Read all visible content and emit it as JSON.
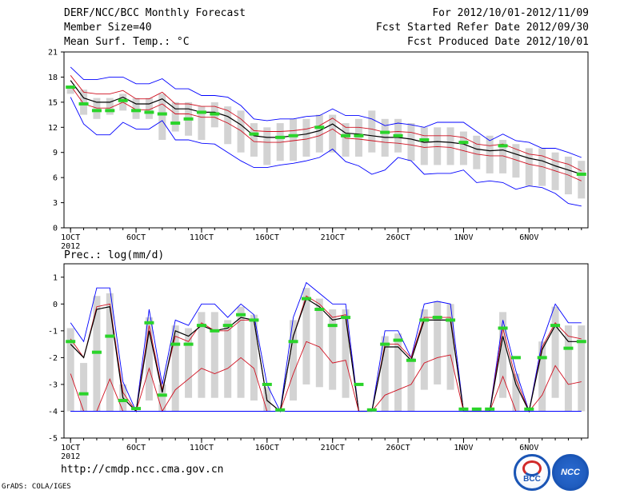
{
  "header": {
    "title": "DERF/NCC/BCC Monthly Forecast",
    "member_size": "Member Size=40",
    "variable": "Mean Surf. Temp.: °C",
    "period": "For 2012/10/01-2012/11/09",
    "started": "Fcst Started Refer Date 2012/09/30",
    "produced": "Fcst Produced Date 2012/10/01"
  },
  "precip_label": "Prec.: log(mm/d)",
  "footer": {
    "url": "http://cmdp.ncc.cma.gov.cn",
    "grads": "GrADS: COLA/IGES",
    "logo_left": "BCC",
    "logo_right": "NCC"
  },
  "colors": {
    "box": "#d3d3d3",
    "green": "#2ad42a",
    "blue": "#0000ff",
    "red": "#d01020",
    "black": "#000000"
  },
  "chart_data": [
    {
      "type": "line",
      "name": "temperature",
      "title": "Mean Surf. Temp.: °C",
      "ylabel": "°C",
      "ylim": [
        0,
        21
      ],
      "yticks": [
        0,
        3,
        6,
        9,
        12,
        15,
        18,
        21
      ],
      "xlim": [
        0.5,
        40.5
      ],
      "xticks": [
        {
          "day": 1,
          "label": "1OCT",
          "sub": "2012"
        },
        {
          "day": 6,
          "label": "6OCT"
        },
        {
          "day": 11,
          "label": "11OCT"
        },
        {
          "day": 16,
          "label": "16OCT"
        },
        {
          "day": 21,
          "label": "21OCT"
        },
        {
          "day": 26,
          "label": "26OCT"
        },
        {
          "day": 31,
          "label": "1NOV"
        },
        {
          "day": 36,
          "label": "6NOV"
        }
      ],
      "series": [
        {
          "name": "max",
          "color": "blue",
          "values": [
            19.2,
            17.7,
            17.7,
            18.0,
            18.0,
            17.2,
            17.2,
            17.8,
            16.6,
            16.6,
            15.8,
            15.8,
            15.6,
            14.6,
            13.0,
            12.8,
            13.0,
            13.0,
            13.3,
            13.4,
            14.2,
            13.4,
            13.4,
            13.0,
            12.2,
            12.5,
            12.3,
            12.0,
            12.6,
            12.6,
            12.6,
            11.5,
            10.4,
            11.2,
            10.4,
            10.2,
            9.5,
            9.5,
            9.0,
            8.4
          ]
        },
        {
          "name": "upper",
          "color": "red",
          "values": [
            18.2,
            16.2,
            16.0,
            16.0,
            16.4,
            15.4,
            15.4,
            16.2,
            14.8,
            14.8,
            14.5,
            14.5,
            14.0,
            13.0,
            11.6,
            11.5,
            11.5,
            11.6,
            11.8,
            12.2,
            13.1,
            12.0,
            12.0,
            11.8,
            11.4,
            11.5,
            11.4,
            11.0,
            11.0,
            11.0,
            10.8,
            10.0,
            9.8,
            10.0,
            9.4,
            8.8,
            8.6,
            8.0,
            7.6,
            6.8
          ]
        },
        {
          "name": "mean",
          "color": "black",
          "values": [
            17.6,
            15.5,
            15.0,
            15.0,
            15.6,
            14.8,
            14.8,
            15.4,
            14.2,
            14.2,
            13.8,
            13.8,
            13.3,
            12.3,
            11.0,
            10.8,
            10.8,
            11.0,
            11.2,
            11.6,
            12.4,
            11.3,
            11.2,
            11.0,
            10.8,
            10.8,
            10.6,
            10.2,
            10.3,
            10.2,
            10.0,
            9.4,
            9.2,
            9.3,
            8.8,
            8.3,
            8.0,
            7.4,
            6.9,
            6.4
          ]
        },
        {
          "name": "lower",
          "color": "red",
          "values": [
            17.0,
            14.8,
            14.3,
            14.3,
            15.0,
            14.1,
            14.1,
            14.8,
            13.6,
            13.6,
            13.2,
            13.2,
            12.5,
            11.6,
            10.3,
            10.2,
            10.2,
            10.4,
            10.6,
            11.0,
            11.8,
            10.7,
            10.6,
            10.4,
            10.2,
            10.1,
            9.9,
            9.6,
            9.7,
            9.6,
            9.2,
            8.8,
            8.6,
            8.6,
            8.1,
            7.6,
            7.3,
            6.8,
            6.3,
            5.6
          ]
        },
        {
          "name": "min",
          "color": "blue",
          "values": [
            15.6,
            12.4,
            11.1,
            11.1,
            12.6,
            11.8,
            11.8,
            12.8,
            10.5,
            10.5,
            10.1,
            10.0,
            9.0,
            8.0,
            7.2,
            7.2,
            7.5,
            7.7,
            8.0,
            8.4,
            9.4,
            7.9,
            7.4,
            6.4,
            6.9,
            8.4,
            8.0,
            6.4,
            6.5,
            6.5,
            6.9,
            5.4,
            5.6,
            5.4,
            4.6,
            5.0,
            4.8,
            4.1,
            2.9,
            2.6
          ]
        }
      ],
      "boxes": [
        [
          17.0,
          16.0
        ],
        [
          16.5,
          13.5
        ],
        [
          15.5,
          13.0
        ],
        [
          15.5,
          13.5
        ],
        [
          16.0,
          14.0
        ],
        [
          15.5,
          13.0
        ],
        [
          15.5,
          13.0
        ],
        [
          16.0,
          10.5
        ],
        [
          15.0,
          11.5
        ],
        [
          15.0,
          11.0
        ],
        [
          14.5,
          10.5
        ],
        [
          15.0,
          12.0
        ],
        [
          14.5,
          10.0
        ],
        [
          14.0,
          9.0
        ],
        [
          12.5,
          8.5
        ],
        [
          12.0,
          7.5
        ],
        [
          12.5,
          8.0
        ],
        [
          13.0,
          8.0
        ],
        [
          13.0,
          8.5
        ],
        [
          13.5,
          9.0
        ],
        [
          13.5,
          9.0
        ],
        [
          12.5,
          8.5
        ],
        [
          13.0,
          8.5
        ],
        [
          14.0,
          9.0
        ],
        [
          13.0,
          8.5
        ],
        [
          13.0,
          9.0
        ],
        [
          12.5,
          8.0
        ],
        [
          12.0,
          7.5
        ],
        [
          12.0,
          7.5
        ],
        [
          12.0,
          7.5
        ],
        [
          11.5,
          7.5
        ],
        [
          11.0,
          7.0
        ],
        [
          11.0,
          6.5
        ],
        [
          10.5,
          6.5
        ],
        [
          10.0,
          6.0
        ],
        [
          9.5,
          5.0
        ],
        [
          9.5,
          5.0
        ],
        [
          9.0,
          4.5
        ],
        [
          8.5,
          4.0
        ],
        [
          8.0,
          3.5
        ]
      ],
      "observed": [
        16.8,
        14.8,
        14.0,
        14.0,
        15.2,
        14.0,
        13.8,
        13.6,
        12.5,
        13.0,
        13.8,
        13.6,
        null,
        null,
        11.2,
        null,
        10.8,
        11.0,
        null,
        12.0,
        null,
        11.0,
        11.0,
        null,
        11.4,
        11.0,
        null,
        10.5,
        null,
        null,
        10.2,
        null,
        null,
        9.8,
        null,
        null,
        null,
        null,
        null,
        6.4
      ]
    },
    {
      "type": "line",
      "name": "precipitation",
      "title": "Prec.: log(mm/d)",
      "ylabel": "log(mm/d)",
      "ylim": [
        -5,
        1.5
      ],
      "yticks": [
        -5,
        -4,
        -3,
        -2,
        -1,
        0,
        1
      ],
      "xlim": [
        0.5,
        40.5
      ],
      "xticks": [
        {
          "day": 1,
          "label": "1OCT",
          "sub": "2012"
        },
        {
          "day": 6,
          "label": "6OCT"
        },
        {
          "day": 11,
          "label": "11OCT"
        },
        {
          "day": 16,
          "label": "16OCT"
        },
        {
          "day": 21,
          "label": "21OCT"
        },
        {
          "day": 26,
          "label": "26OCT"
        },
        {
          "day": 31,
          "label": "1NOV"
        },
        {
          "day": 36,
          "label": "6NOV"
        }
      ],
      "series": [
        {
          "name": "max",
          "color": "blue",
          "values": [
            -0.7,
            -1.4,
            0.6,
            0.6,
            -2.9,
            -4.0,
            -0.2,
            -3.0,
            -0.6,
            -0.8,
            0.0,
            0.0,
            -0.5,
            0.0,
            -0.4,
            -3.0,
            -4.0,
            -0.5,
            0.8,
            0.4,
            0.0,
            0.0,
            -4.0,
            -4.0,
            -1.0,
            -1.0,
            -2.0,
            0.0,
            0.1,
            0.0,
            -4.0,
            -4.0,
            -4.0,
            -0.6,
            -2.5,
            -4.0,
            -1.4,
            0.0,
            -0.7,
            -0.7
          ]
        },
        {
          "name": "upper",
          "color": "red",
          "values": [
            -1.3,
            -2.0,
            -0.1,
            0.0,
            -3.3,
            -4.0,
            -0.8,
            -3.2,
            -1.2,
            -1.4,
            -0.7,
            -1.0,
            -1.0,
            -0.6,
            -0.6,
            -3.6,
            -4.0,
            -1.2,
            0.3,
            0.0,
            -0.5,
            -0.4,
            -4.0,
            -4.0,
            -1.5,
            -1.5,
            -2.0,
            -0.5,
            -0.5,
            -0.5,
            -4.0,
            -4.0,
            -4.0,
            -0.9,
            -2.8,
            -4.0,
            -1.6,
            -0.7,
            -1.2,
            -1.3
          ]
        },
        {
          "name": "mean",
          "color": "black",
          "values": [
            -1.5,
            -2.0,
            -0.2,
            -0.1,
            -3.5,
            -4.0,
            -1.0,
            -3.3,
            -1.0,
            -1.2,
            -0.8,
            -1.0,
            -0.9,
            -0.5,
            -0.6,
            -3.6,
            -4.0,
            -1.2,
            0.2,
            -0.1,
            -0.6,
            -0.5,
            -4.0,
            -4.0,
            -1.6,
            -1.6,
            -2.1,
            -0.6,
            -0.6,
            -0.6,
            -4.0,
            -4.0,
            -4.0,
            -1.2,
            -3.0,
            -4.0,
            -1.7,
            -0.8,
            -1.4,
            -1.4
          ]
        },
        {
          "name": "lower",
          "color": "red",
          "values": [
            -2.6,
            -4.0,
            -4.0,
            -2.8,
            -4.0,
            -4.0,
            -2.4,
            -4.0,
            -3.2,
            -2.8,
            -2.4,
            -2.6,
            -2.4,
            -2.0,
            -2.4,
            -4.0,
            -4.0,
            -2.6,
            -1.4,
            -1.6,
            -2.2,
            -2.1,
            -4.0,
            -4.0,
            -3.4,
            -3.2,
            -3.0,
            -2.2,
            -2.0,
            -1.9,
            -4.0,
            -4.0,
            -4.0,
            -2.7,
            -4.0,
            -4.0,
            -3.4,
            -2.3,
            -3.0,
            -2.9
          ]
        },
        {
          "name": "min",
          "color": "blue",
          "values": [
            -4.0,
            -4.0,
            -4.0,
            -4.0,
            -4.0,
            -4.0,
            -4.0,
            -4.0,
            -4.0,
            -4.0,
            -4.0,
            -4.0,
            -4.0,
            -4.0,
            -4.0,
            -4.0,
            -4.0,
            -4.0,
            -4.0,
            -4.0,
            -4.0,
            -4.0,
            -4.0,
            -4.0,
            -4.0,
            -4.0,
            -4.0,
            -4.0,
            -4.0,
            -4.0,
            -4.0,
            -4.0,
            -4.0,
            -4.0,
            -4.0,
            -4.0,
            -4.0,
            -4.0,
            -4.0,
            -4.0
          ]
        }
      ],
      "boxes": [
        [
          -0.9,
          -4.0
        ],
        [
          -2.2,
          -4.0
        ],
        [
          0.3,
          -4.0
        ],
        [
          0.4,
          -4.0
        ],
        [
          -3.0,
          -4.0
        ],
        [
          -4.0,
          -4.0
        ],
        [
          -0.5,
          -3.6
        ],
        [
          -3.0,
          -4.0
        ],
        [
          -0.8,
          -4.0
        ],
        [
          -0.9,
          -3.5
        ],
        [
          -0.3,
          -3.5
        ],
        [
          -0.3,
          -3.5
        ],
        [
          -0.6,
          -3.5
        ],
        [
          -0.1,
          -3.5
        ],
        [
          -0.4,
          -3.6
        ],
        [
          -3.1,
          -4.0
        ],
        [
          -4.0,
          -4.0
        ],
        [
          -0.6,
          -3.6
        ],
        [
          0.6,
          -3.0
        ],
        [
          0.2,
          -3.1
        ],
        [
          -0.2,
          -3.2
        ],
        [
          -0.2,
          -3.5
        ],
        [
          -4.0,
          -4.0
        ],
        [
          -4.0,
          -4.0
        ],
        [
          -1.2,
          -4.0
        ],
        [
          -1.1,
          -4.0
        ],
        [
          -2.0,
          -4.0
        ],
        [
          -0.2,
          -3.2
        ],
        [
          0.1,
          -3.0
        ],
        [
          0.0,
          -3.2
        ],
        [
          -4.0,
          -4.0
        ],
        [
          -4.0,
          -4.0
        ],
        [
          -4.0,
          -4.0
        ],
        [
          -0.3,
          -3.5
        ],
        [
          -2.6,
          -4.0
        ],
        [
          -4.0,
          -4.0
        ],
        [
          -1.4,
          -4.0
        ],
        [
          -0.1,
          -3.5
        ],
        [
          -0.8,
          -4.0
        ],
        [
          -0.8,
          -4.0
        ]
      ],
      "observed": [
        -1.4,
        -3.35,
        -1.8,
        -1.2,
        -3.6,
        -3.9,
        -0.7,
        -3.4,
        -1.5,
        -1.5,
        -0.8,
        -1.0,
        -0.8,
        -0.4,
        -0.6,
        -3.0,
        -3.95,
        -1.4,
        0.2,
        -0.2,
        -0.8,
        -0.5,
        -3.0,
        -3.95,
        -1.5,
        -1.35,
        -2.1,
        -0.6,
        -0.5,
        -0.6,
        -3.92,
        -3.92,
        -3.92,
        -0.9,
        -2.0,
        -3.92,
        -2.0,
        -0.8,
        -1.65,
        -1.4
      ]
    }
  ]
}
